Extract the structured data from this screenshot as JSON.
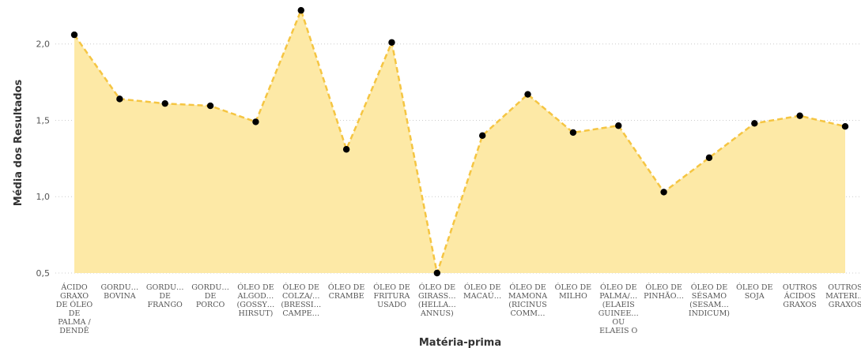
{
  "chart_data": {
    "type": "area",
    "xlabel": "Matéria-prima",
    "ylabel": "Média dos Resultados",
    "ylim": [
      0.5,
      2.25
    ],
    "yticks": [
      "0,5",
      "1,0",
      "1,5",
      "2,0"
    ],
    "ytick_values": [
      0.5,
      1.0,
      1.5,
      2.0
    ],
    "grid": true,
    "colors": {
      "area": "#fde9a6",
      "line": "#f5c542",
      "point": "#000000",
      "grid": "#cccccc"
    },
    "categories": [
      [
        "ÁCIDO",
        "GRAXO",
        "DE ÓLEO",
        "DE",
        "PALMA /",
        "DENDÊ"
      ],
      [
        "GORDU…",
        "BOVINA"
      ],
      [
        "GORDU…",
        "DE",
        "FRANGO"
      ],
      [
        "GORDU…",
        "DE",
        "PORCO"
      ],
      [
        "ÓLEO DE",
        "ALGOD…",
        "(GOSSY…",
        "HIRSUT)"
      ],
      [
        "ÓLEO DE",
        "COLZA/…",
        "(BRESSI…",
        "CAMPE…"
      ],
      [
        "ÓLEO DE",
        "CRAMBE"
      ],
      [
        "ÓLEO DE",
        "FRITURA",
        "USADO"
      ],
      [
        "ÓLEO DE",
        "GIRASS…",
        "(HELLA…",
        "ANNUS)"
      ],
      [
        "ÓLEO DE",
        "MACAÚ…"
      ],
      [
        "ÓLEO DE",
        "MAMONA",
        "(RICINUS",
        "COMM…"
      ],
      [
        "ÓLEO DE",
        "MILHO"
      ],
      [
        "ÓLEO DE",
        "PALMA/…",
        "(ELAEIS",
        "GUINEE…",
        "OU",
        "ELAEIS O"
      ],
      [
        "ÓLEO DE",
        "PINHÃO…"
      ],
      [
        "ÓLEO DE",
        "SÉSAMO",
        "(SESAM…",
        "INDICUM)"
      ],
      [
        "ÓLEO DE",
        "SOJA"
      ],
      [
        "OUTROS",
        "ÁCIDOS",
        "GRAXOS"
      ],
      [
        "OUTROS",
        "MATERI…",
        "GRAXOS"
      ]
    ],
    "values": [
      2.06,
      1.64,
      1.61,
      1.595,
      1.49,
      2.22,
      1.31,
      2.01,
      0.5,
      1.4,
      1.67,
      1.42,
      1.465,
      1.03,
      1.255,
      1.48,
      1.53,
      1.46
    ]
  }
}
